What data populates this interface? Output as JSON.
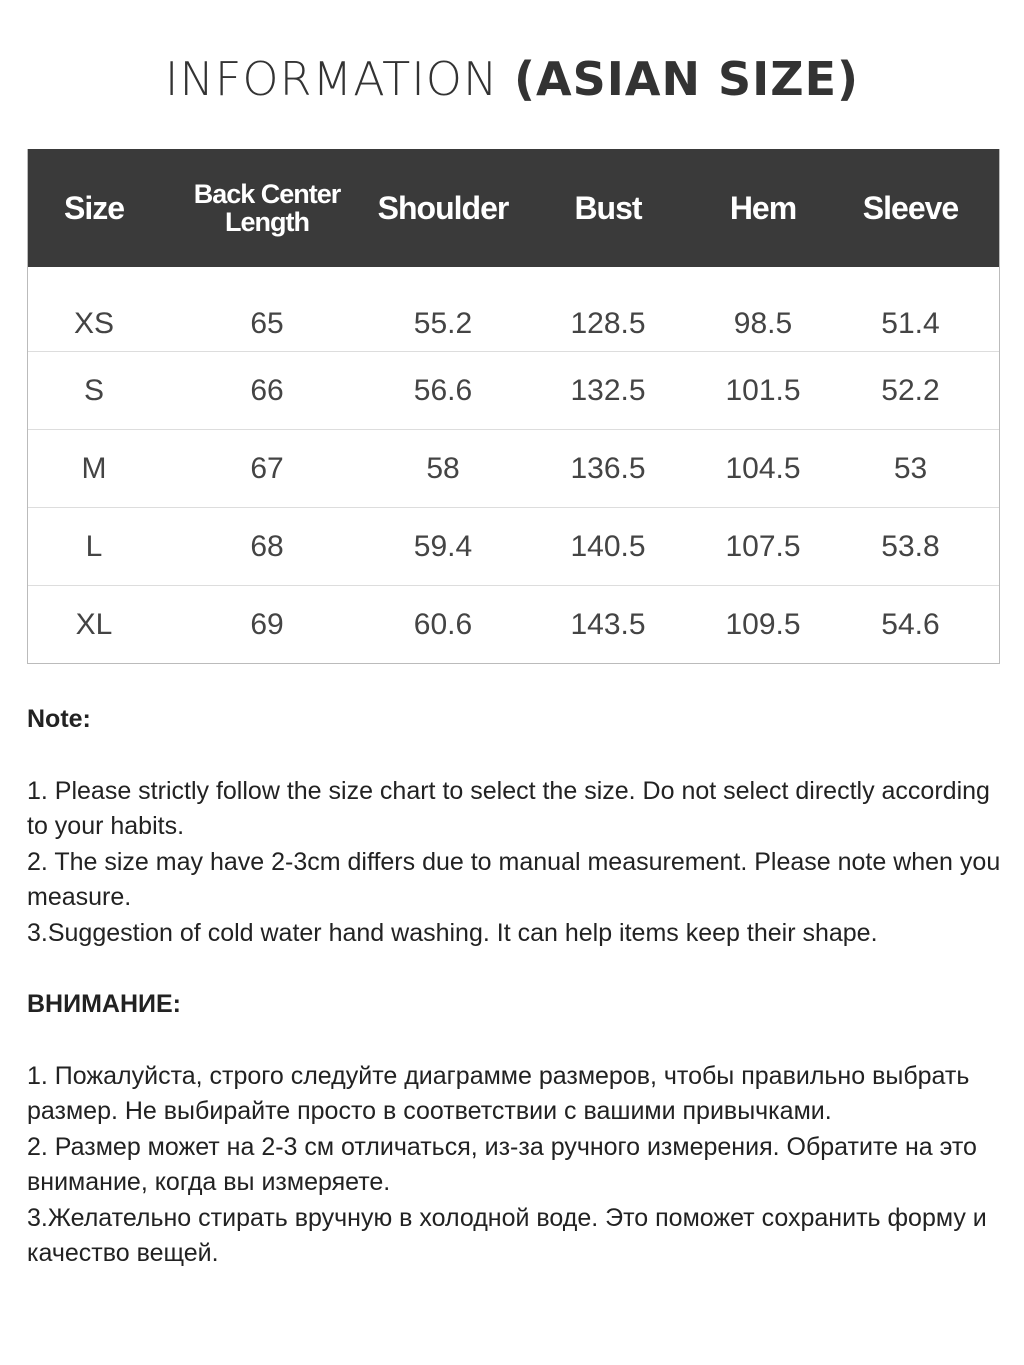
{
  "title": {
    "light": "INFORMATION",
    "bold": "(ASIAN SIZE)"
  },
  "table": {
    "headers": [
      "Size",
      "Back Center Length",
      "Shoulder",
      "Bust",
      "Hem",
      "Sleeve"
    ],
    "rows": [
      [
        "XS",
        "65",
        "55.2",
        "128.5",
        "98.5",
        "51.4"
      ],
      [
        "S",
        "66",
        "56.6",
        "132.5",
        "101.5",
        "52.2"
      ],
      [
        "M",
        "67",
        "58",
        "136.5",
        "104.5",
        "53"
      ],
      [
        "L",
        "68",
        "59.4",
        "140.5",
        "107.5",
        "53.8"
      ],
      [
        "XL",
        "69",
        "60.6",
        "143.5",
        "109.5",
        "54.6"
      ]
    ]
  },
  "note": {
    "heading": "Note:",
    "lines": [
      "1. Please strictly follow the size chart  to select the size. Do not select directly according to your habits.",
      "2. The size may have 2-3cm differs due to manual measurement. Please note when you measure.",
      "3.Suggestion of cold water hand washing. It can help items keep their shape."
    ]
  },
  "note_ru": {
    "heading": "ВНИМАНИЕ:",
    "lines": [
      "1. Пожалуйста, строго следуйте диаграмме размеров, чтобы правильно выбрать размер. Не выбирайте просто в соответствии с вашими привычками.",
      "2. Размер может на 2-3 см отличаться, из-за ручного измерения. Обратите на это внимание, когда вы измеряете.",
      "3.Желательно стирать вручную в холодной воде. Это поможет сохранить форму и качество вещей."
    ]
  }
}
